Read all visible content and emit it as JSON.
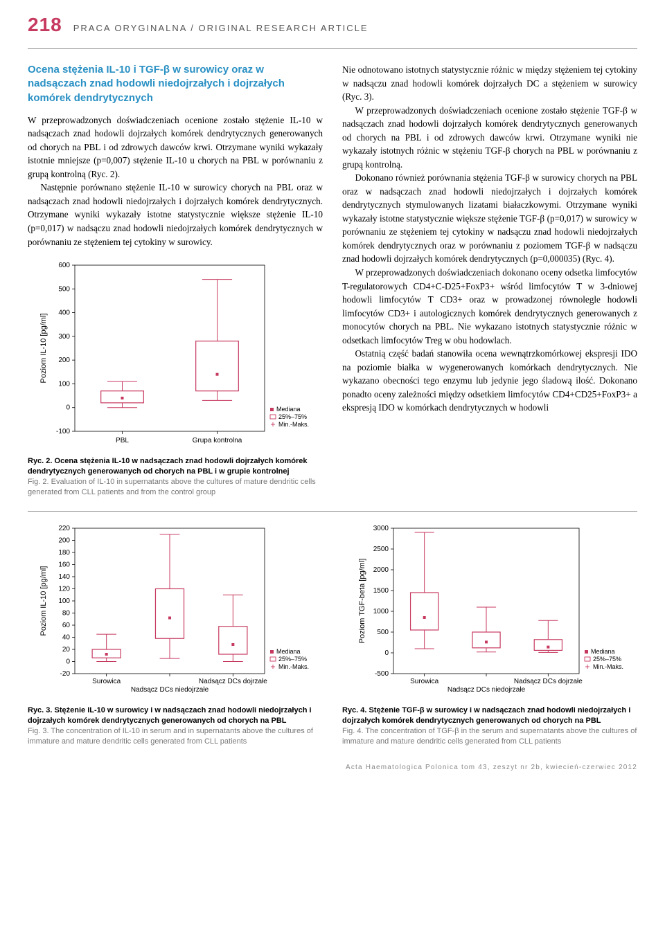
{
  "page_number": "218",
  "header_title": "PRACA ORYGINALNA / ORIGINAL RESEARCH ARTICLE",
  "section_title": "Ocena stężenia IL-10 i TGF-β w surowicy oraz w nadsączach znad hodowli niedojrzałych i dojrzałych komórek dendrytycznych",
  "left_paragraphs": [
    "W przeprowadzonych doświadczeniach ocenione zostało stężenie IL-10 w nadsączach znad hodowli dojrzałych komórek dendrytycznych generowanych od chorych na PBL i od zdrowych dawców krwi. Otrzymane wyniki wykazały istotnie mniejsze (p=0,007) stężenie IL-10 u chorych na PBL w porównaniu z grupą kontrolną (Ryc. 2).",
    "Następnie porównano stężenie IL-10 w surowicy chorych na PBL oraz w nadsączach znad hodowli niedojrzałych i dojrzałych komórek dendrytycznych. Otrzymane wyniki wykazały istotne statystycznie większe stężenie IL-10 (p=0,017) w nadsączu znad hodowli niedojrzałych komórek dendrytycznych w porównaniu ze stężeniem tej cytokiny w surowicy."
  ],
  "right_paragraphs": [
    "Nie odnotowano istotnych statystycznie różnic w między stężeniem tej cytokiny w nadsączu znad hodowli komórek dojrzałych DC a stężeniem w surowicy (Ryc. 3).",
    "W przeprowadzonych doświadczeniach ocenione zostało stężenie TGF-β w nadsączach znad hodowli dojrzałych komórek dendrytycznych generowanych od chorych na PBL i od zdrowych dawców krwi. Otrzymane wyniki nie wykazały istotnych różnic w stężeniu TGF-β chorych na PBL w porównaniu z grupą kontrolną.",
    "Dokonano również porównania stężenia TGF-β w surowicy chorych na PBL oraz w nadsączach znad hodowli niedojrzałych i dojrzałych komórek dendrytycznych stymulowanych lizatami białaczkowymi. Otrzymane wyniki wykazały istotne statystycznie większe stężenie TGF-β (p=0,017) w surowicy w porównaniu ze stężeniem tej cytokiny w nadsączu znad hodowli niedojrzałych komórek dendrytycznych oraz w porównaniu z poziomem TGF-β w nadsączu znad hodowli dojrzałych komórek dendrytycznych (p=0,000035) (Ryc. 4).",
    "W przeprowadzonych doświadczeniach dokonano oceny odsetka limfocytów T-regulatorowych CD4+C-D25+FoxP3+ wśród limfocytów T w 3-dniowej hodowli limfocytów T CD3+ oraz w prowadzonej równolegle hodowli limfocytów CD3+ i autologicznych komórek dendrytycznych generowanych z monocytów chorych na PBL. Nie wykazano istotnych statystycznie różnic w odsetkach limfocytów Treg w obu hodowlach.",
    "Ostatnią część badań stanowiła ocena wewnątrzkomórkowej ekspresji IDO na poziomie białka w wygenerowanych komórkach dendrytycznych. Nie wykazano obecności tego enzymu lub jedynie jego śladową ilość. Dokonano ponadto oceny zależności między odsetkiem limfocytów CD4+CD25+FoxP3+ a ekspresją IDO w komórkach dendrytycznych w hodowli"
  ],
  "fig2": {
    "type": "boxplot",
    "ylabel": "Poziom IL-10 [pg/ml]",
    "yticks": [
      -100,
      0,
      100,
      200,
      300,
      400,
      500,
      600
    ],
    "ylim": [
      -100,
      600
    ],
    "categories": [
      "PBL",
      "Grupa kontrolna"
    ],
    "boxes": [
      {
        "min": 0,
        "q1": 20,
        "median": 40,
        "q3": 70,
        "max": 110
      },
      {
        "min": 30,
        "q1": 70,
        "median": 140,
        "q3": 280,
        "max": 540
      }
    ],
    "legend": {
      "median": "Mediana",
      "box": "25%–75%",
      "whisker": "Min.-Maks."
    },
    "box_fill": "#ffffff",
    "box_stroke": "#c73a60",
    "bg": "#ffffff",
    "caption_bold": "Ryc. 2. Ocena stężenia IL-10 w nadsączach znad hodowli dojrzałych komórek dendrytycznych generowanych od chorych na PBL i w grupie kontrolnej",
    "caption_gray": "Fig. 2. Evaluation of IL-10 in supernatants above the cultures of mature dendritic cells generated from CLL patients and from the control group"
  },
  "fig3": {
    "type": "boxplot",
    "ylabel": "Poziom IL-10 [pg/ml]",
    "yticks": [
      -20,
      0,
      20,
      40,
      60,
      80,
      100,
      120,
      140,
      160,
      180,
      200,
      220
    ],
    "ylim": [
      -20,
      220
    ],
    "categories": [
      "Surowica",
      "Nadsącz DCs niedojrzałe",
      "Nadsącz DCs dojrzałe"
    ],
    "boxes": [
      {
        "min": 0,
        "q1": 6,
        "median": 12,
        "q3": 20,
        "max": 45
      },
      {
        "min": 5,
        "q1": 38,
        "median": 72,
        "q3": 120,
        "max": 210
      },
      {
        "min": 0,
        "q1": 12,
        "median": 28,
        "q3": 58,
        "max": 110
      }
    ],
    "legend": {
      "median": "Mediana",
      "box": "25%–75%",
      "whisker": "Min.-Maks."
    },
    "box_fill": "#ffffff",
    "box_stroke": "#c73a60",
    "caption_bold": "Ryc. 3. Stężenie IL-10 w surowicy i w nadsączach znad hodowli niedojrzałych i dojrzałych komórek dendrytycznych generowanych od chorych na PBL",
    "caption_gray": "Fig. 3. The concentration of IL-10 in serum and in supernatants above the cultures of immature and mature dendritic cells generated from CLL patients"
  },
  "fig4": {
    "type": "boxplot",
    "ylabel": "Poziom TGF-beta [pg/ml]",
    "yticks": [
      -500,
      0,
      500,
      1000,
      1500,
      2000,
      2500,
      3000
    ],
    "ylim": [
      -500,
      3000
    ],
    "categories": [
      "Surowica",
      "Nadsącz DCs niedojrzałe",
      "Nadsącz DCs dojrzałe"
    ],
    "boxes": [
      {
        "min": 100,
        "q1": 550,
        "median": 850,
        "q3": 1450,
        "max": 2900
      },
      {
        "min": 20,
        "q1": 120,
        "median": 260,
        "q3": 500,
        "max": 1100
      },
      {
        "min": 10,
        "q1": 60,
        "median": 140,
        "q3": 320,
        "max": 780
      }
    ],
    "legend": {
      "median": "Mediana",
      "box": "25%–75%",
      "whisker": "Min.-Maks."
    },
    "box_fill": "#ffffff",
    "box_stroke": "#c73a60",
    "caption_bold": "Ryc. 4. Stężenie TGF-β w surowicy i w nadsączach znad hodowli niedojrzałych i dojrzałych komórek dendrytycznych generowanych od chorych na PBL",
    "caption_gray": "Fig. 4. The concentration of TGF-β in the serum and supernatants above the cultures of immature and mature dendritic cells generated from CLL patients"
  },
  "footer": "Acta Haematologica Polonica tom 43, zeszyt nr 2b, kwiecień-czerwiec 2012"
}
